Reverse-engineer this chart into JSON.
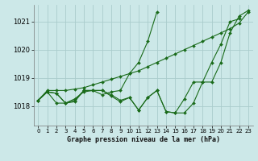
{
  "xlabel": "Graphe pression niveau de la mer (hPa)",
  "bg_color": "#cce8e8",
  "grid_color": "#aacccc",
  "line_color": "#1a6b1a",
  "xlim": [
    -0.5,
    23.5
  ],
  "ylim": [
    1017.3,
    1021.6
  ],
  "yticks": [
    1018,
    1019,
    1020,
    1021
  ],
  "xticks": [
    0,
    1,
    2,
    3,
    4,
    5,
    6,
    7,
    8,
    9,
    10,
    11,
    12,
    13,
    14,
    15,
    16,
    17,
    18,
    19,
    20,
    21,
    22,
    23
  ],
  "series_x": [
    [
      0,
      1,
      2,
      3,
      4,
      5,
      6,
      7,
      8,
      9,
      10,
      11,
      12,
      13,
      14,
      15,
      16,
      17,
      18,
      19,
      20,
      21,
      22
    ],
    [
      0,
      1,
      2,
      3,
      4,
      5,
      6,
      7,
      8,
      9,
      10,
      11,
      12,
      13,
      14,
      15,
      16,
      17,
      18,
      19,
      20,
      21,
      22,
      23
    ],
    [
      0,
      1,
      2,
      3,
      4,
      5,
      6,
      7,
      8,
      9,
      10,
      11,
      12,
      13,
      14,
      15,
      16,
      17,
      18,
      19,
      20,
      21,
      22,
      23
    ],
    [
      0,
      1,
      2,
      3,
      4,
      5,
      6,
      7,
      8,
      9,
      10,
      11,
      12,
      13
    ]
  ],
  "series_y": [
    [
      1018.2,
      1018.5,
      1018.45,
      1018.1,
      1018.15,
      1018.55,
      1018.55,
      1018.55,
      1018.35,
      1018.15,
      1018.3,
      1017.85,
      1018.3,
      1018.55,
      1017.8,
      1017.75,
      1017.75,
      1018.1,
      1018.85,
      1019.55,
      1020.2,
      1021.0,
      1021.1
    ],
    [
      1018.2,
      1018.5,
      1018.45,
      1018.1,
      1018.2,
      1018.55,
      1018.55,
      1018.55,
      1018.4,
      1018.2,
      1018.3,
      1017.85,
      1018.3,
      1018.55,
      1017.8,
      1017.75,
      1018.25,
      1018.85,
      1018.85,
      1018.85,
      1019.55,
      1020.6,
      1021.2,
      1021.4
    ],
    [
      1018.2,
      1018.55,
      1018.55,
      1018.55,
      1018.6,
      1018.65,
      1018.75,
      1018.85,
      1018.95,
      1019.05,
      1019.15,
      1019.25,
      1019.4,
      1019.55,
      1019.7,
      1019.85,
      1020.0,
      1020.15,
      1020.3,
      1020.45,
      1020.6,
      1020.75,
      1020.95,
      1021.35
    ],
    [
      1018.2,
      1018.5,
      1018.1,
      1018.1,
      1018.25,
      1018.5,
      1018.55,
      1018.4,
      1018.5,
      1018.55,
      1019.15,
      1019.55,
      1020.3,
      1021.35
    ]
  ]
}
